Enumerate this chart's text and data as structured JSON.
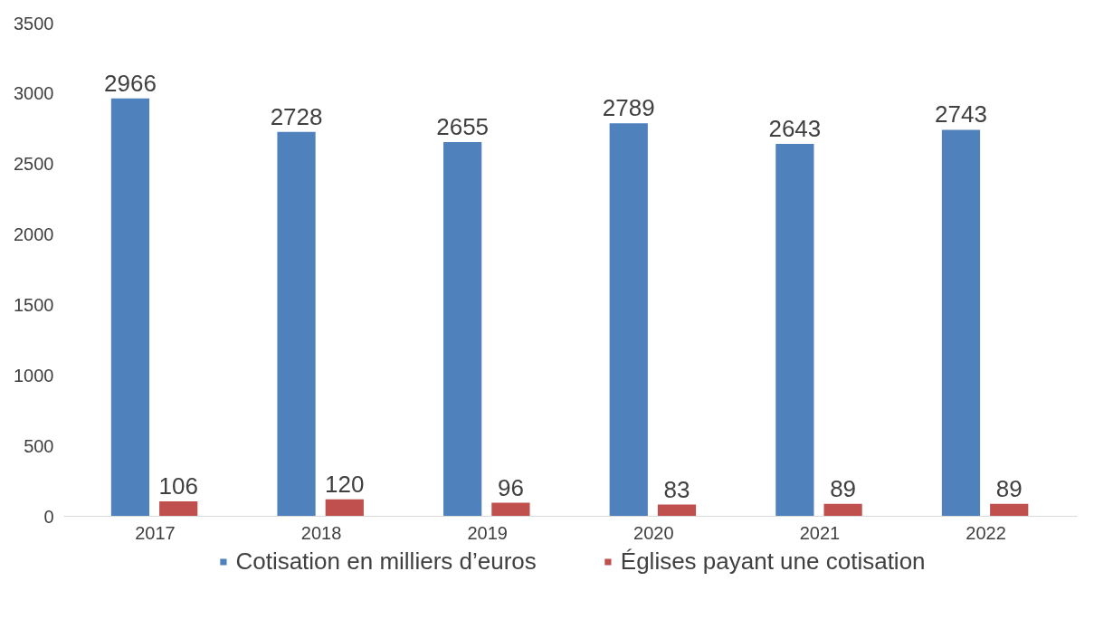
{
  "chart_data": {
    "type": "bar",
    "categories": [
      "2017",
      "2018",
      "2019",
      "2020",
      "2021",
      "2022"
    ],
    "series": [
      {
        "name": "Cotisation en milliers d’euros",
        "color": "#4f81bd",
        "values": [
          2966,
          2728,
          2655,
          2789,
          2643,
          2743
        ]
      },
      {
        "name": "Églises payant une cotisation",
        "color": "#c0504d",
        "values": [
          106,
          120,
          96,
          83,
          89,
          89
        ]
      }
    ],
    "ylim": [
      0,
      3500
    ],
    "yticks": [
      0,
      500,
      1000,
      1500,
      2000,
      2500,
      3000,
      3500
    ],
    "data_labels": true,
    "grid": false,
    "legend": "bottom"
  }
}
